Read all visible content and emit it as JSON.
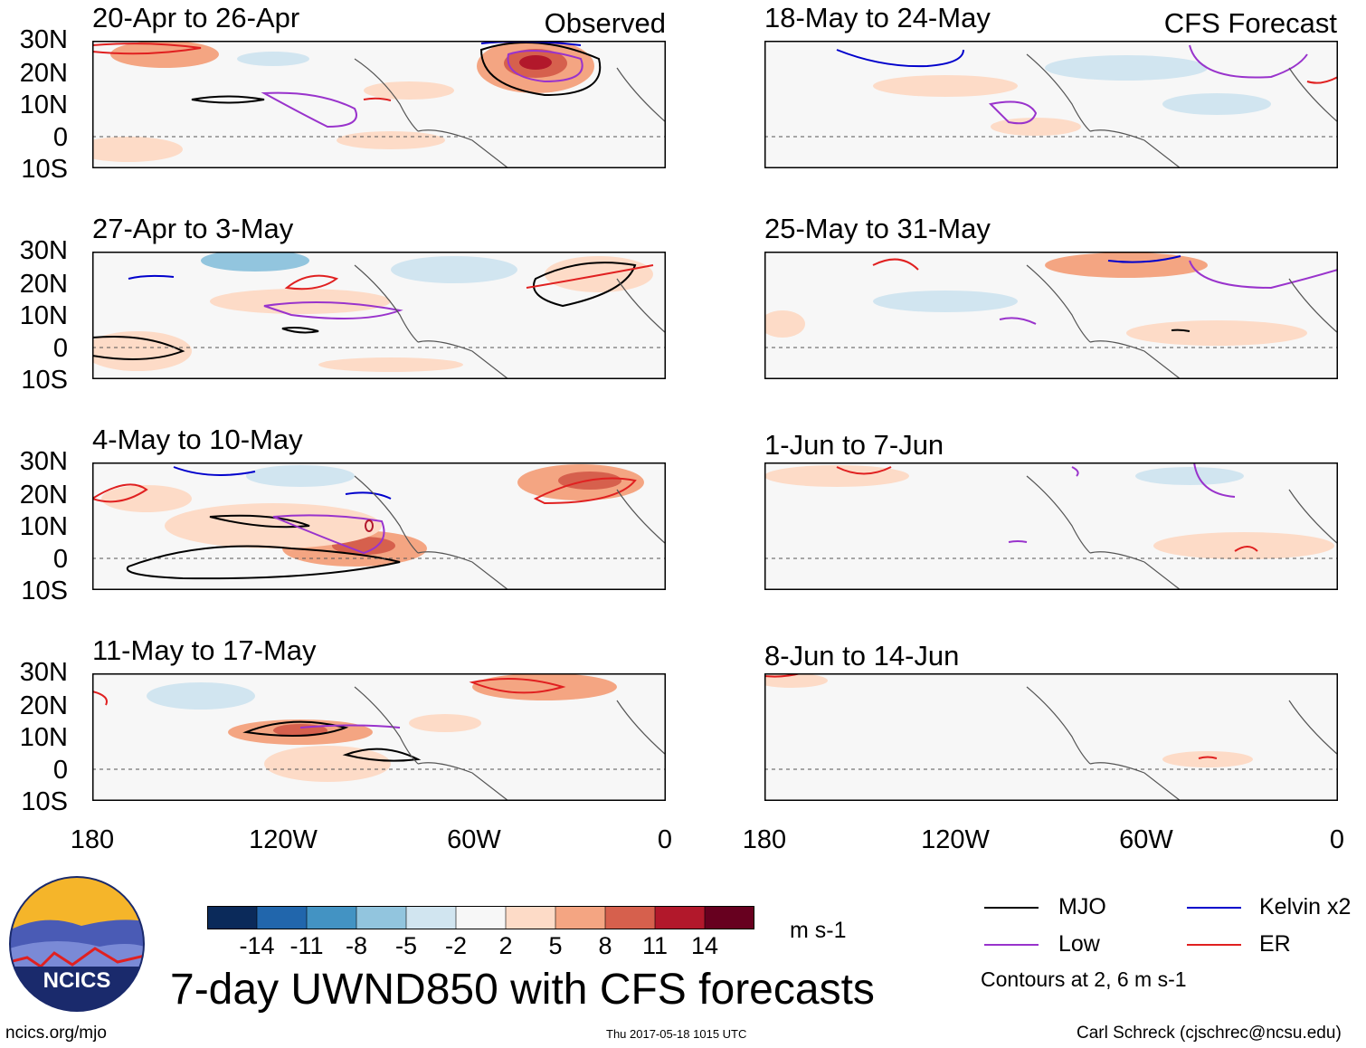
{
  "panels": {
    "observed_label": "Observed",
    "forecast_label": "CFS Forecast",
    "left": [
      {
        "period": "20-Apr to 26-Apr"
      },
      {
        "period": "27-Apr to 3-May"
      },
      {
        "period": "4-May to 10-May"
      },
      {
        "period": "11-May to 17-May"
      }
    ],
    "right": [
      {
        "period": "18-May to 24-May"
      },
      {
        "period": "25-May to 31-May"
      },
      {
        "period": "1-Jun to 7-Jun"
      },
      {
        "period": "8-Jun to 14-Jun"
      }
    ]
  },
  "axes": {
    "lat_ticks": [
      "30N",
      "20N",
      "10N",
      "0",
      "10S"
    ],
    "lon_ticks": [
      "180",
      "120W",
      "60W",
      "0"
    ]
  },
  "colorbar": {
    "unit": "m s-1",
    "labels": [
      "-14",
      "-11",
      "-8",
      "-5",
      "-2",
      "2",
      "5",
      "8",
      "11",
      "14"
    ],
    "colors": [
      "#0b2a5a",
      "#2166ac",
      "#4393c3",
      "#92c5de",
      "#d1e5f0",
      "#f7f7f7",
      "#fddbc7",
      "#f4a582",
      "#d6604d",
      "#b2182b",
      "#67001f"
    ]
  },
  "legend": {
    "mjo": "MJO",
    "kelvin": "Kelvin x2",
    "low": "Low",
    "er": "ER",
    "contours_note": "Contours at 2, 6 m s-1",
    "colors": {
      "mjo": "#000000",
      "kelvin": "#0000cc",
      "low": "#9933cc",
      "er": "#e02020"
    }
  },
  "title": "7-day UWND850 with CFS forecasts",
  "logo_text": "NCICS",
  "footer": {
    "url": "ncics.org/mjo",
    "timestamp": "Thu 2017-05-18 1015 UTC",
    "author": "Carl Schreck (cjschrec@ncsu.edu)"
  }
}
